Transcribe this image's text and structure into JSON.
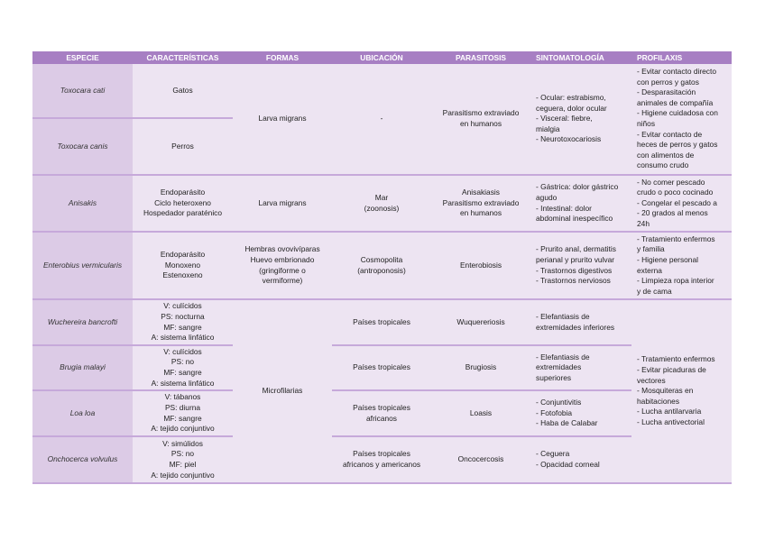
{
  "headers": [
    "ESPECIE",
    "CARACTERÍSTICAS",
    "FORMAS",
    "UBICACIÓN",
    "PARASITOSIS",
    "SINTOMATOLOGÍA",
    "PROFILAXIS"
  ],
  "toxocara": {
    "species": [
      "Toxocara cati",
      "Toxocara canis"
    ],
    "caracteristicas": [
      "Gatos",
      "Perros"
    ],
    "formas": "Larva migrans",
    "ubicacion": "-",
    "parasitosis": "Parasitismo extraviado\nen humanos",
    "sintomatologia": "- Ocular: estrabismo,\nceguera, dolor ocular\n- Visceral: fiebre,\nmialgia\n- Neurotoxocariosis",
    "profilaxis": "- Evitar contacto directo\ncon perros y gatos\n- Desparasitación\nanimales de compañía\n- Higiene cuidadosa con\nniños\n- Evitar contacto de\nheces de perros y gatos\ncon alimentos de\nconsumo crudo"
  },
  "anisakis": {
    "species": "Anisakis",
    "caracteristicas": "Endoparásito\nCiclo heteroxeno\nHospedador paraténico",
    "formas": "Larva migrans",
    "ubicacion": "Mar\n(zoonosis)",
    "parasitosis": "Anisakiasis\nParasitismo extraviado\nen humanos",
    "sintomatologia": "- Gástrica: dolor gástrico\nagudo\n- Intestinal: dolor\nabdominal inespecífico",
    "profilaxis": "- No comer pescado\ncrudo o poco cocinado\n- Congelar el pescado a\n- 20 grados al menos\n24h"
  },
  "enterobius": {
    "species": "Enterobius vermicularis",
    "caracteristicas": "Endoparásito\nMonoxeno\nEstenoxeno",
    "formas": "Hembras ovovivíparas\nHuevo embrionado\n(gringiforme o\nvermiforme)",
    "ubicacion": "Cosmopolita\n(antroponosis)",
    "parasitosis": "Enterobiosis",
    "sintomatologia": "- Prurito anal, dermatitis\nperianal y prurito vulvar\n- Trastornos digestivos\n- Trastornos nerviosos",
    "profilaxis": "- Tratamiento enfermos\ny familia\n- Higiene personal\nexterna\n- Limpieza ropa interior\ny de cama"
  },
  "filarias": {
    "formas": "Microfilarias",
    "profilaxis": "- Tratamiento enfermos\n- Evitar picaduras de\nvectores\n- Mosquiteras en\nhabitaciones\n- Lucha antilarvaria\n- Lucha antivectorial",
    "rows": [
      {
        "species": "Wuchereira bancrofti",
        "caracteristicas": "V: culícidos\nPS: nocturna\nMF: sangre\nA: sistema linfático",
        "ubicacion": "Países tropicales",
        "parasitosis": "Wuquereriosis",
        "sintomatologia": "- Elefantiasis de\nextremidades inferiores"
      },
      {
        "species": "Brugia malayi",
        "caracteristicas": "V: culícidos\nPS: no\nMF: sangre\nA: sistema linfático",
        "ubicacion": "Países tropicales",
        "parasitosis": "Brugiosis",
        "sintomatologia": "- Elefantiasis de\nextremidades\nsuperiores"
      },
      {
        "species": "Loa loa",
        "caracteristicas": "V: tábanos\nPS: diurna\nMF: sangre\nA: tejido conjuntivo",
        "ubicacion": "Países tropicales\nafricanos",
        "parasitosis": "Loasis",
        "sintomatologia": "- Conjuntivitis\n- Fotofobia\n- Haba de Calabar"
      },
      {
        "species": "Onchocerca volvulus",
        "caracteristicas": "V: simúlidos\nPS: no\nMF: piel\nA: tejido conjuntivo",
        "ubicacion": "Países tropicales\nafricanos y americanos",
        "parasitosis": "Oncocercosis",
        "sintomatologia": "- Ceguera\n- Opacidad corneal"
      }
    ]
  },
  "colors": {
    "header": "#a77fc3",
    "species_col": "#dccbe6",
    "cell": "#ede4f2",
    "rule": "#c6a9da"
  }
}
